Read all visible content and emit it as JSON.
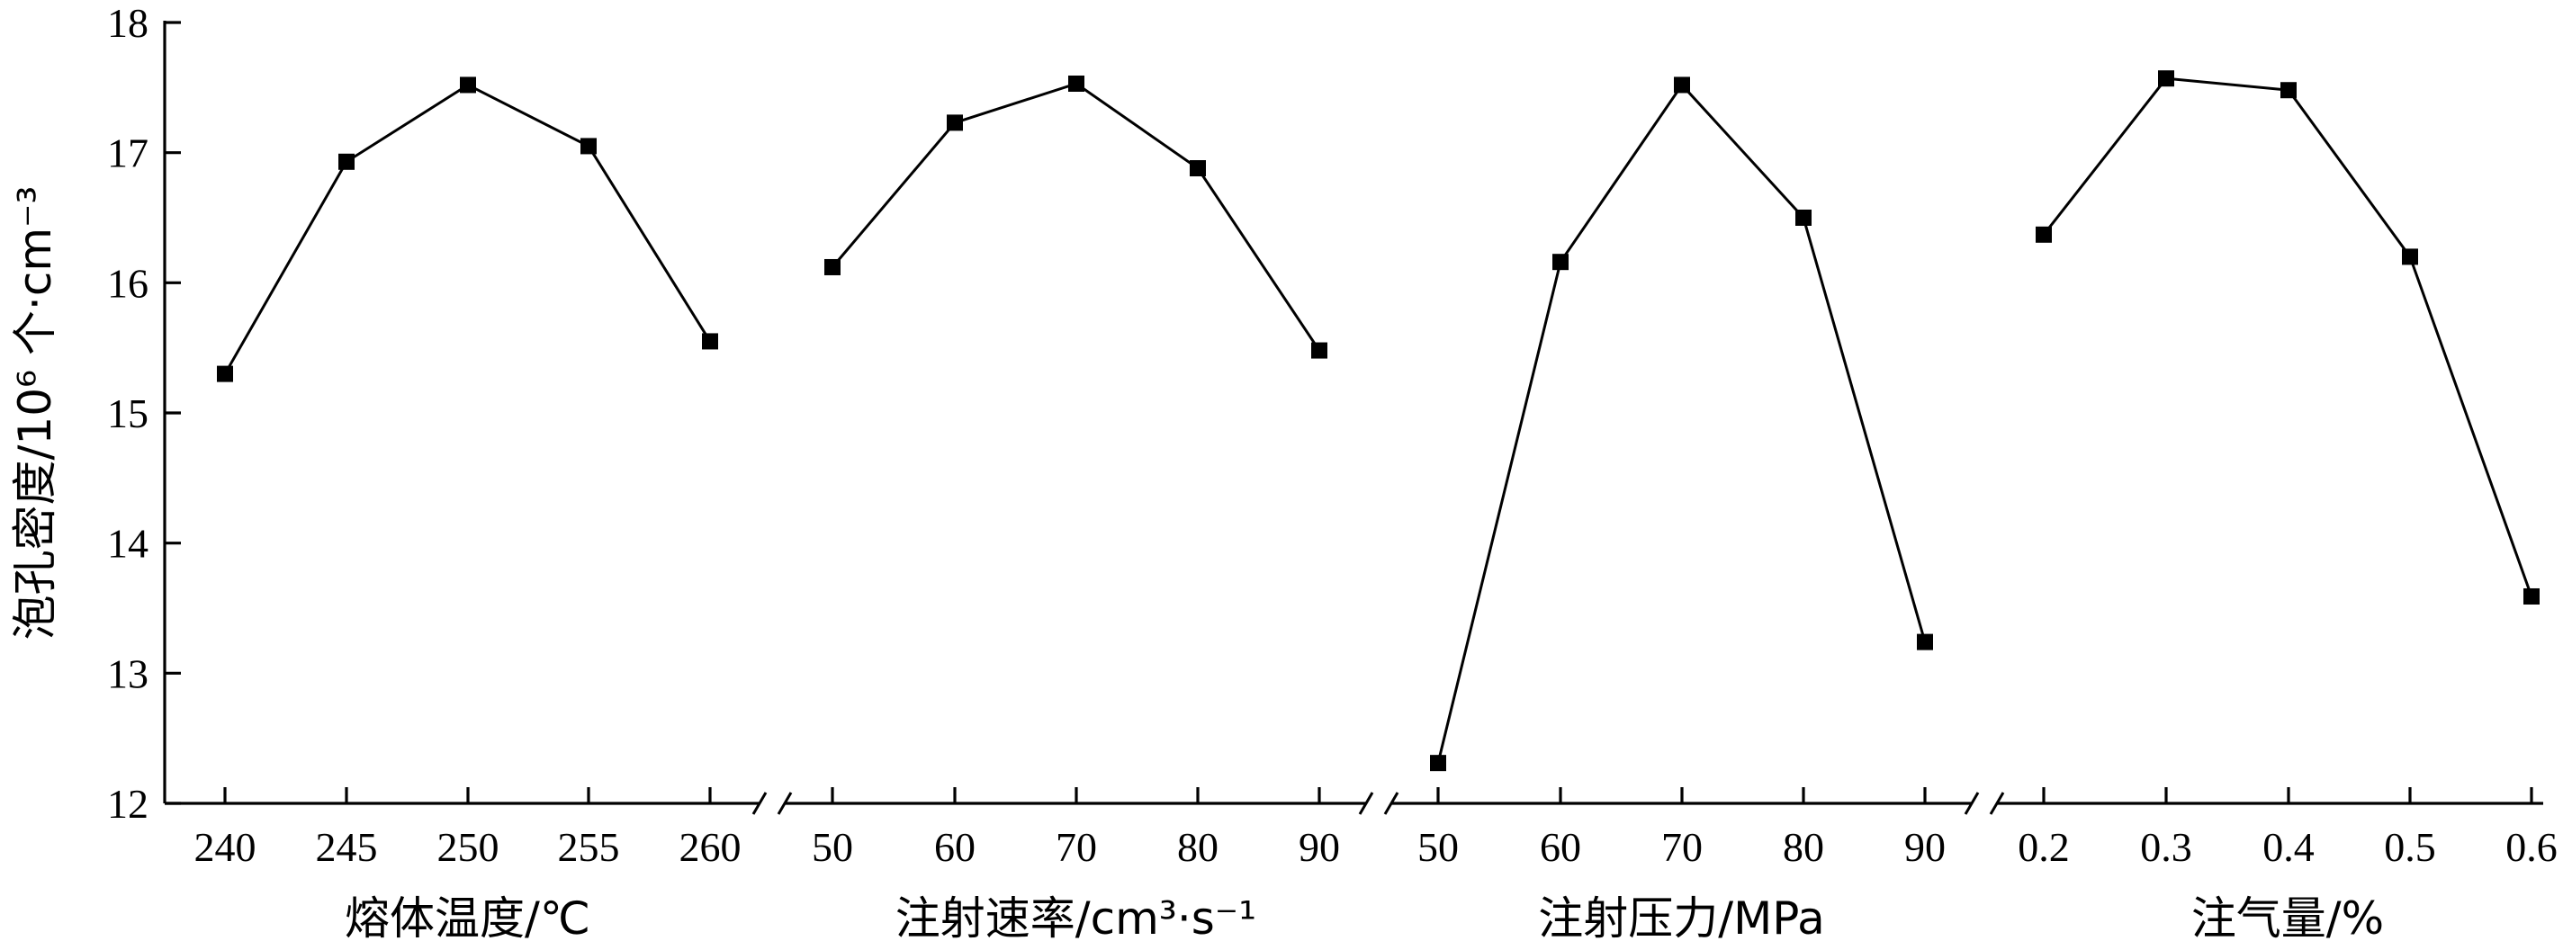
{
  "chart_data": {
    "type": "line",
    "ylabel": "泡孔密度/10⁶ 个·cm⁻³",
    "ylim": [
      12,
      18
    ],
    "yticks": [
      12,
      13,
      14,
      15,
      16,
      17,
      18
    ],
    "grid": false,
    "marker": "square",
    "panels": [
      {
        "xlabel": "熔体温度/℃",
        "x": [
          "240",
          "245",
          "250",
          "255",
          "260"
        ],
        "values": [
          15.3,
          16.93,
          17.52,
          17.05,
          15.55
        ]
      },
      {
        "xlabel": "注射速率/cm³·s⁻¹",
        "x": [
          "50",
          "60",
          "70",
          "80",
          "90"
        ],
        "values": [
          16.12,
          17.23,
          17.53,
          16.88,
          15.48
        ]
      },
      {
        "xlabel": "注射压力/MPa",
        "x": [
          "50",
          "60",
          "70",
          "80",
          "90"
        ],
        "values": [
          12.31,
          16.16,
          17.52,
          16.5,
          13.24
        ]
      },
      {
        "xlabel": "注气量/%",
        "x": [
          "0.2",
          "0.3",
          "0.4",
          "0.5",
          "0.6"
        ],
        "values": [
          16.37,
          17.57,
          17.48,
          16.2,
          13.59
        ]
      }
    ]
  }
}
